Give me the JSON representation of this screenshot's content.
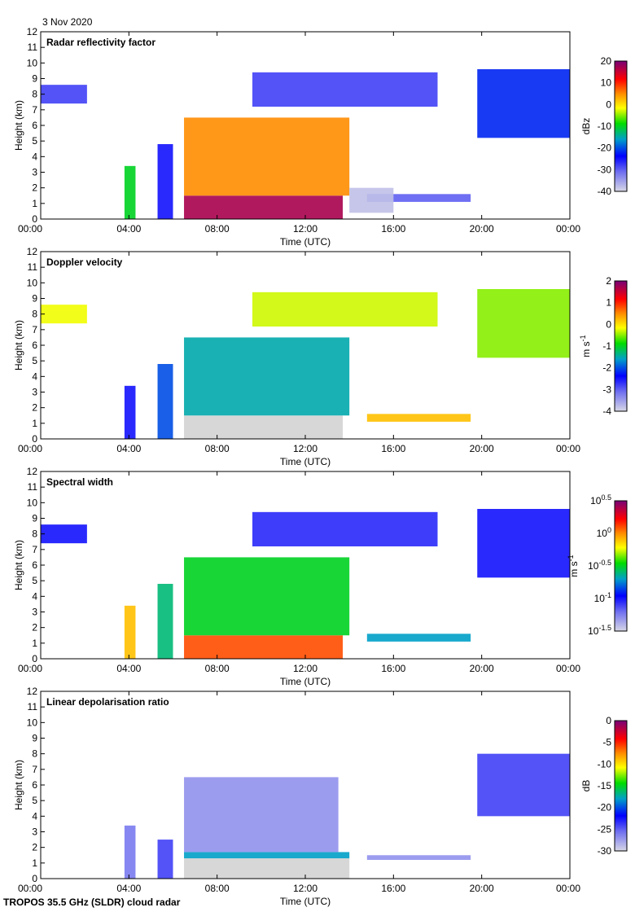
{
  "date_label": "3 Nov 2020",
  "footer": "TROPOS 35.5 GHz (SLDR) cloud radar",
  "chart_data": [
    {
      "type": "heatmap",
      "title": "Radar reflectivity factor",
      "xlabel": "Time (UTC)",
      "ylabel": "Height (km)",
      "xlim": [
        0,
        24
      ],
      "ylim": [
        0,
        12
      ],
      "x_ticks": [
        "00:00",
        "04:00",
        "08:00",
        "12:00",
        "16:00",
        "20:00",
        "00:00"
      ],
      "y_ticks": [
        "0",
        "1",
        "2",
        "3",
        "4",
        "5",
        "6",
        "7",
        "8",
        "9",
        "10",
        "11",
        "12"
      ],
      "colorbar": {
        "label": "dBz",
        "range": [
          -40,
          20
        ],
        "ticks": [
          "20",
          "10",
          "0",
          "-10",
          "-20",
          "-30",
          "-40"
        ]
      },
      "regions": [
        {
          "t": [
            6.5,
            13.7
          ],
          "h": [
            0,
            1.5
          ],
          "value": 17
        },
        {
          "t": [
            6.5,
            14.0
          ],
          "h": [
            1.5,
            6.5
          ],
          "value": 5
        },
        {
          "t": [
            3.8,
            4.3
          ],
          "h": [
            0,
            3.4
          ],
          "value": -10
        },
        {
          "t": [
            9.6,
            18.0
          ],
          "h": [
            7.2,
            9.4
          ],
          "value": -28
        },
        {
          "t": [
            0.0,
            2.1
          ],
          "h": [
            7.4,
            8.6
          ],
          "value": -28
        },
        {
          "t": [
            19.8,
            24.0
          ],
          "h": [
            5.2,
            9.6
          ],
          "value": -22
        },
        {
          "t": [
            14.8,
            19.5
          ],
          "h": [
            1.1,
            1.6
          ],
          "value": -30
        },
        {
          "t": [
            5.3,
            6.0
          ],
          "h": [
            0,
            4.8
          ],
          "value": -25
        },
        {
          "t": [
            14.0,
            16.0
          ],
          "h": [
            0.4,
            2.0
          ],
          "value": -38
        }
      ]
    },
    {
      "type": "heatmap",
      "title": "Doppler velocity",
      "xlabel": "Time (UTC)",
      "ylabel": "Height (km)",
      "xlim": [
        0,
        24
      ],
      "ylim": [
        0,
        12
      ],
      "x_ticks": [
        "00:00",
        "04:00",
        "08:00",
        "12:00",
        "16:00",
        "20:00",
        "00:00"
      ],
      "y_ticks": [
        "0",
        "1",
        "2",
        "3",
        "4",
        "5",
        "6",
        "7",
        "8",
        "9",
        "10",
        "11",
        "12"
      ],
      "colorbar": {
        "label": "m s-1",
        "label_base": "m s",
        "label_exp": "-1",
        "range": [
          -4,
          2
        ],
        "ticks": [
          "2",
          "1",
          "0",
          "-1",
          "-2",
          "-3",
          "-4"
        ]
      },
      "regions": [
        {
          "t": [
            6.5,
            13.7
          ],
          "h": [
            0,
            1.5
          ],
          "value": -4.5
        },
        {
          "t": [
            6.5,
            14.0
          ],
          "h": [
            1.5,
            6.5
          ],
          "value": -1.5
        },
        {
          "t": [
            3.8,
            4.3
          ],
          "h": [
            0,
            3.4
          ],
          "value": -2.5
        },
        {
          "t": [
            9.6,
            18.0
          ],
          "h": [
            7.2,
            9.4
          ],
          "value": -0.3
        },
        {
          "t": [
            0.0,
            2.1
          ],
          "h": [
            7.4,
            8.6
          ],
          "value": -0.2
        },
        {
          "t": [
            19.8,
            24.0
          ],
          "h": [
            5.2,
            9.6
          ],
          "value": -0.5
        },
        {
          "t": [
            14.8,
            19.5
          ],
          "h": [
            1.1,
            1.6
          ],
          "value": 0.2
        },
        {
          "t": [
            5.3,
            6.0
          ],
          "h": [
            0,
            4.8
          ],
          "value": -2
        }
      ]
    },
    {
      "type": "heatmap",
      "title": "Spectral width",
      "xlabel": "Time (UTC)",
      "ylabel": "Height (km)",
      "xlim": [
        0,
        24
      ],
      "ylim": [
        0,
        12
      ],
      "x_ticks": [
        "00:00",
        "04:00",
        "08:00",
        "12:00",
        "16:00",
        "20:00",
        "00:00"
      ],
      "y_ticks": [
        "0",
        "1",
        "2",
        "3",
        "4",
        "5",
        "6",
        "7",
        "8",
        "9",
        "10",
        "11",
        "12"
      ],
      "colorbar": {
        "label": "m s-1",
        "label_base": "m s",
        "label_exp": "-1",
        "range": [
          -1.5,
          0.5
        ],
        "scale": "log10",
        "ticks": [
          {
            "base": "10",
            "exp": "0.5"
          },
          {
            "base": "10",
            "exp": "0"
          },
          {
            "base": "10",
            "exp": "-0.5"
          },
          {
            "base": "10",
            "exp": "-1"
          },
          {
            "base": "10",
            "exp": "-1.5"
          }
        ]
      },
      "regions": [
        {
          "t": [
            6.5,
            13.7
          ],
          "h": [
            0,
            1.5
          ],
          "value": 0.1
        },
        {
          "t": [
            6.5,
            14.0
          ],
          "h": [
            1.5,
            6.5
          ],
          "value": -0.5
        },
        {
          "t": [
            3.8,
            4.3
          ],
          "h": [
            0,
            3.4
          ],
          "value": -0.1
        },
        {
          "t": [
            9.6,
            18.0
          ],
          "h": [
            7.2,
            9.4
          ],
          "value": -1.05
        },
        {
          "t": [
            0.0,
            2.1
          ],
          "h": [
            7.4,
            8.6
          ],
          "value": -1.0
        },
        {
          "t": [
            19.8,
            24.0
          ],
          "h": [
            5.2,
            9.6
          ],
          "value": -1.0
        },
        {
          "t": [
            14.8,
            19.5
          ],
          "h": [
            1.1,
            1.6
          ],
          "value": -0.7
        },
        {
          "t": [
            5.3,
            6.0
          ],
          "h": [
            0,
            4.8
          ],
          "value": -0.6
        }
      ]
    },
    {
      "type": "heatmap",
      "title": "Linear depolarisation ratio",
      "xlabel": "Time (UTC)",
      "ylabel": "Height (km)",
      "xlim": [
        0,
        24
      ],
      "ylim": [
        0,
        12
      ],
      "x_ticks": [
        "00:00",
        "04:00",
        "08:00",
        "12:00",
        "16:00",
        "20:00",
        "00:00"
      ],
      "y_ticks": [
        "0",
        "1",
        "2",
        "3",
        "4",
        "5",
        "6",
        "7",
        "8",
        "9",
        "10",
        "11",
        "12"
      ],
      "colorbar": {
        "label": "dB",
        "range": [
          -30,
          0
        ],
        "ticks": [
          "0",
          "-5",
          "-10",
          "-15",
          "-20",
          "-25",
          "-30"
        ]
      },
      "regions": [
        {
          "t": [
            6.5,
            14.0
          ],
          "h": [
            0,
            1.3
          ],
          "value": -31
        },
        {
          "t": [
            6.5,
            14.0
          ],
          "h": [
            1.3,
            1.7
          ],
          "value": -18
        },
        {
          "t": [
            6.5,
            13.5
          ],
          "h": [
            1.7,
            6.5
          ],
          "value": -27
        },
        {
          "t": [
            3.8,
            4.3
          ],
          "h": [
            0,
            3.4
          ],
          "value": -26
        },
        {
          "t": [
            19.8,
            24.0
          ],
          "h": [
            4.0,
            8.0
          ],
          "value": -24
        },
        {
          "t": [
            14.8,
            19.5
          ],
          "h": [
            1.2,
            1.5
          ],
          "value": -27
        },
        {
          "t": [
            5.3,
            6.0
          ],
          "h": [
            0,
            2.5
          ],
          "value": -24
        }
      ]
    }
  ]
}
